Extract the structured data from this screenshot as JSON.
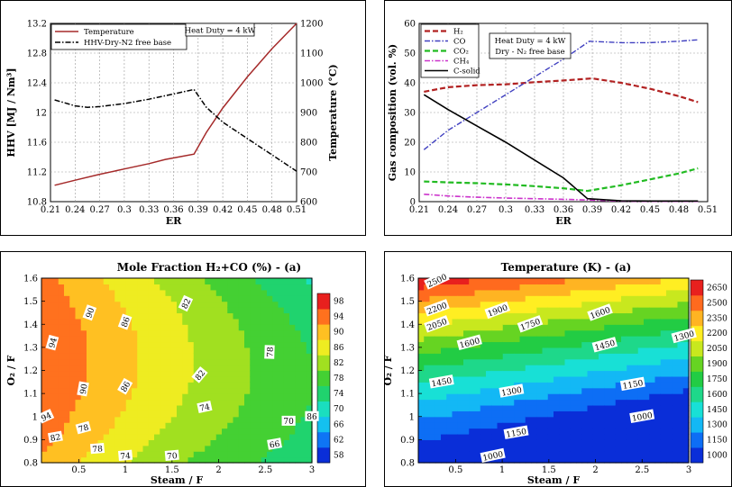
{
  "chart_data": [
    {
      "type": "line",
      "id": "a",
      "xlabel": "ER",
      "ylabel": "HHV [MJ / Nm³]",
      "y2label": "Temperature (°C)",
      "xlim": [
        0.21,
        0.51
      ],
      "ylim": [
        10.8,
        13.2
      ],
      "y2lim": [
        600,
        1200
      ],
      "xticks": [
        "0.21",
        "0.24",
        "0.27",
        "0.3",
        "0.33",
        "0.36",
        "0.39",
        "0.42",
        "0.45",
        "0.48",
        "0.51"
      ],
      "yticks": [
        "10.8",
        "11.2",
        "11.6",
        "12",
        "12.4",
        "12.8",
        "13.2"
      ],
      "y2ticks": [
        "600",
        "700",
        "800",
        "900",
        "1000",
        "1100",
        "1200"
      ],
      "annotation": "Heat Duty = 4 kW",
      "grid": true,
      "legend": "top-left",
      "series": [
        {
          "name": "Temperature",
          "axis": "right",
          "color": "#a52a2a",
          "dash": "solid",
          "x": [
            0.215,
            0.24,
            0.27,
            0.3,
            0.33,
            0.35,
            0.37,
            0.385,
            0.4,
            0.42,
            0.45,
            0.48,
            0.51
          ],
          "y": [
            655,
            672,
            692,
            710,
            728,
            742,
            752,
            760,
            833,
            915,
            1020,
            1115,
            1200
          ]
        },
        {
          "name": "HHV-Dry-N2 free base",
          "axis": "left",
          "color": "#000000",
          "dash": "dashdot",
          "x": [
            0.215,
            0.24,
            0.255,
            0.27,
            0.3,
            0.33,
            0.36,
            0.385,
            0.4,
            0.42,
            0.45,
            0.48,
            0.51
          ],
          "y": [
            12.17,
            12.09,
            12.07,
            12.08,
            12.12,
            12.18,
            12.25,
            12.31,
            12.07,
            11.87,
            11.65,
            11.43,
            11.21
          ]
        }
      ]
    },
    {
      "type": "line",
      "id": "b",
      "xlabel": "ER",
      "ylabel": "Gas composition (vol. %)",
      "xlim": [
        0.21,
        0.51
      ],
      "ylim": [
        0,
        60
      ],
      "xticks": [
        "0.21",
        "0.24",
        "0.27",
        "0.3",
        "0.33",
        "0.36",
        "0.39",
        "0.42",
        "0.45",
        "0.48",
        "0.51"
      ],
      "yticks": [
        "0",
        "10",
        "20",
        "30",
        "40",
        "50",
        "60"
      ],
      "annotation1": "Heat Duty = 4 kW",
      "annotation2": "Dry - N₂ free base",
      "grid": true,
      "legend": "top-left",
      "series": [
        {
          "name": "H₂",
          "color": "#b22222",
          "dash": "dash",
          "width": 2.2,
          "x": [
            0.215,
            0.24,
            0.27,
            0.3,
            0.33,
            0.36,
            0.39,
            0.42,
            0.45,
            0.48,
            0.5
          ],
          "y": [
            37,
            38.5,
            39.2,
            39.5,
            40.2,
            40.8,
            41.5,
            40,
            38,
            35.5,
            33.5
          ]
        },
        {
          "name": "CO",
          "color": "#4040c0",
          "dash": "dashdot",
          "width": 1.4,
          "x": [
            0.215,
            0.24,
            0.27,
            0.3,
            0.33,
            0.36,
            0.387,
            0.42,
            0.45,
            0.48,
            0.5
          ],
          "y": [
            17.5,
            24,
            30,
            36,
            42,
            48,
            54,
            53.5,
            53.5,
            54,
            54.5
          ]
        },
        {
          "name": "CO₂",
          "color": "#22bb22",
          "dash": "dash",
          "width": 2.2,
          "x": [
            0.215,
            0.24,
            0.27,
            0.3,
            0.33,
            0.36,
            0.385,
            0.42,
            0.45,
            0.48,
            0.5
          ],
          "y": [
            6.8,
            6.5,
            6.2,
            5.8,
            5.2,
            4.5,
            3.6,
            5.5,
            7.5,
            9.5,
            11.2
          ]
        },
        {
          "name": "CH₄",
          "color": "#cc33cc",
          "dash": "dashdot",
          "width": 1.6,
          "x": [
            0.215,
            0.24,
            0.27,
            0.3,
            0.33,
            0.36,
            0.39,
            0.42,
            0.45,
            0.48,
            0.5
          ],
          "y": [
            2.5,
            1.9,
            1.5,
            1.2,
            1.0,
            0.8,
            0.5,
            0.2,
            0.1,
            0.1,
            0.1
          ]
        },
        {
          "name": "C-solid",
          "color": "#000000",
          "dash": "solid",
          "width": 1.6,
          "x": [
            0.215,
            0.24,
            0.27,
            0.3,
            0.33,
            0.36,
            0.385,
            0.42,
            0.45,
            0.48,
            0.5
          ],
          "y": [
            36,
            31,
            25.5,
            20,
            14,
            8,
            1,
            0.3,
            0.2,
            0.2,
            0.2
          ]
        }
      ]
    },
    {
      "type": "heatmap",
      "id": "c",
      "title": "Mole Fraction H₂+CO (%) - (a)",
      "xlabel": "Steam / F",
      "ylabel": "O₂ / F",
      "xlim": [
        0.1,
        3
      ],
      "ylim": [
        0.8,
        1.6
      ],
      "xticks": [
        "0.5",
        "1",
        "1.5",
        "2",
        "2.5",
        "3"
      ],
      "yticks": [
        "0.8",
        "0.9",
        "1",
        "1.1",
        "1.2",
        "1.3",
        "1.4",
        "1.5",
        "1.6"
      ],
      "colorbar": [
        "58",
        "62",
        "66",
        "70",
        "74",
        "78",
        "82",
        "86",
        "90",
        "94",
        "98"
      ],
      "contour_labels": [
        "94",
        "90",
        "86",
        "82",
        "78",
        "94",
        "90",
        "86",
        "82",
        "78",
        "74",
        "70",
        "66",
        "86",
        "82",
        "78",
        "74",
        "70"
      ]
    },
    {
      "type": "heatmap",
      "id": "d",
      "title": "Temperature (K) - (a)",
      "xlabel": "Steam / F",
      "ylabel": "O₂ / F",
      "xlim": [
        0.1,
        3
      ],
      "ylim": [
        0.8,
        1.6
      ],
      "xticks": [
        "0.5",
        "1",
        "1.5",
        "2",
        "2.5",
        "3"
      ],
      "yticks": [
        "0.8",
        "0.9",
        "1",
        "1.1",
        "1.2",
        "1.3",
        "1.4",
        "1.5",
        "1.6"
      ],
      "colorbar": [
        "1000",
        "1150",
        "1300",
        "1450",
        "1600",
        "1750",
        "1900",
        "2050",
        "2200",
        "2350",
        "2500",
        "2650"
      ],
      "contour_labels": [
        "2500",
        "2200",
        "2050",
        "1900",
        "1750",
        "1600",
        "1600",
        "1450",
        "1300",
        "1450",
        "1300",
        "1150",
        "1150",
        "1000",
        "1000"
      ]
    }
  ]
}
